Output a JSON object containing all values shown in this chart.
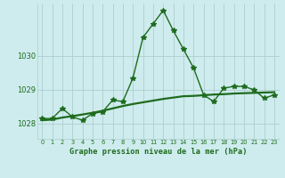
{
  "title": "Graphe pression niveau de la mer (hPa)",
  "background_color": "#ceeced",
  "line_color": "#1e6b1e",
  "grid_color": "#aecdd0",
  "x_ticks": [
    0,
    1,
    2,
    3,
    4,
    5,
    6,
    7,
    8,
    9,
    10,
    11,
    12,
    13,
    14,
    15,
    16,
    17,
    18,
    19,
    20,
    21,
    22,
    23
  ],
  "y_ticks": [
    1028,
    1029,
    1030
  ],
  "ylim": [
    1027.55,
    1031.55
  ],
  "xlim": [
    -0.5,
    23.5
  ],
  "series1_x": [
    0,
    1,
    2,
    3,
    4,
    5,
    6,
    7,
    8,
    9,
    10,
    11,
    12,
    13,
    14,
    15,
    16,
    17,
    18,
    19,
    20,
    21,
    22,
    23
  ],
  "series1_y": [
    1028.15,
    1028.15,
    1028.45,
    1028.2,
    1028.1,
    1028.3,
    1028.35,
    1028.7,
    1028.65,
    1029.35,
    1030.55,
    1030.95,
    1031.35,
    1030.75,
    1030.2,
    1029.65,
    1028.85,
    1028.65,
    1029.05,
    1029.1,
    1029.1,
    1029.0,
    1028.75,
    1028.85
  ],
  "series2_x": [
    0,
    1,
    2,
    3,
    4,
    5,
    6,
    7,
    8,
    9,
    10,
    11,
    12,
    13,
    14,
    15,
    16,
    17,
    18,
    19,
    20,
    21,
    22,
    23
  ],
  "series2_y": [
    1028.1,
    1028.12,
    1028.18,
    1028.22,
    1028.27,
    1028.32,
    1028.38,
    1028.45,
    1028.52,
    1028.58,
    1028.63,
    1028.68,
    1028.73,
    1028.77,
    1028.81,
    1028.82,
    1028.84,
    1028.86,
    1028.87,
    1028.89,
    1028.9,
    1028.91,
    1028.92,
    1028.93
  ],
  "marker": "*",
  "markersize": 4,
  "linewidth": 1.0,
  "smooth_linewidth": 1.6
}
